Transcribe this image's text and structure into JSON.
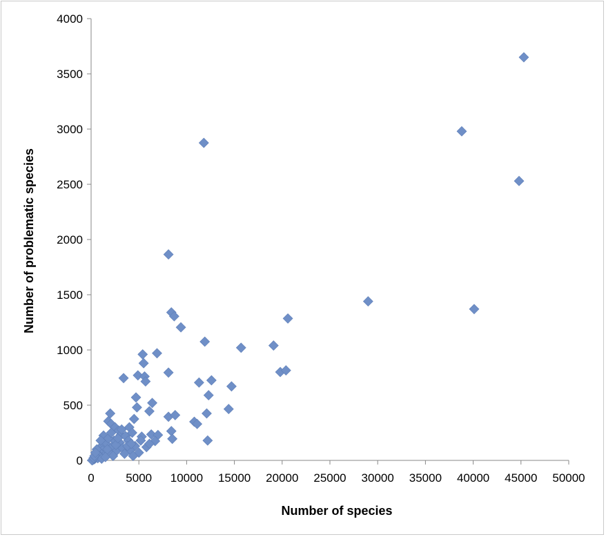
{
  "chart_data": {
    "type": "scatter",
    "title": "",
    "xlabel": "Number of species",
    "ylabel": "Number of problematic species",
    "xlim": [
      0,
      50000
    ],
    "ylim": [
      0,
      4000
    ],
    "x_ticks": [
      "0",
      "5000",
      "10000",
      "15000",
      "20000",
      "25000",
      "30000",
      "35000",
      "40000",
      "45000",
      "50000"
    ],
    "y_ticks": [
      "0",
      "500",
      "1000",
      "1500",
      "2000",
      "2500",
      "3000",
      "3500",
      "4000"
    ],
    "grid": false,
    "legend": "none",
    "marker": "diamond",
    "marker_color": "#6f8fc7",
    "series": [
      {
        "points": [
          [
            45300,
            3650
          ],
          [
            38800,
            2980
          ],
          [
            44800,
            2530
          ],
          [
            11800,
            2875
          ],
          [
            8100,
            1865
          ],
          [
            29000,
            1440
          ],
          [
            40100,
            1370
          ],
          [
            8400,
            1340
          ],
          [
            8700,
            1305
          ],
          [
            9400,
            1205
          ],
          [
            20600,
            1285
          ],
          [
            11900,
            1075
          ],
          [
            15700,
            1020
          ],
          [
            19100,
            1040
          ],
          [
            19800,
            800
          ],
          [
            20400,
            815
          ],
          [
            5400,
            960
          ],
          [
            6900,
            970
          ],
          [
            5500,
            880
          ],
          [
            8100,
            795
          ],
          [
            3400,
            745
          ],
          [
            4900,
            770
          ],
          [
            5600,
            760
          ],
          [
            5700,
            715
          ],
          [
            11300,
            705
          ],
          [
            12600,
            725
          ],
          [
            14700,
            670
          ],
          [
            12300,
            590
          ],
          [
            14400,
            465
          ],
          [
            12100,
            425
          ],
          [
            4700,
            570
          ],
          [
            6400,
            520
          ],
          [
            4800,
            480
          ],
          [
            6100,
            445
          ],
          [
            8100,
            395
          ],
          [
            8800,
            410
          ],
          [
            10800,
            350
          ],
          [
            11100,
            330
          ],
          [
            2000,
            425
          ],
          [
            1800,
            355
          ],
          [
            2100,
            330
          ],
          [
            4500,
            375
          ],
          [
            4000,
            300
          ],
          [
            8400,
            265
          ],
          [
            12200,
            180
          ],
          [
            8500,
            195
          ],
          [
            6300,
            235
          ],
          [
            7000,
            230
          ],
          [
            5300,
            215
          ],
          [
            6700,
            175
          ],
          [
            1300,
            225
          ],
          [
            2500,
            300
          ],
          [
            2900,
            270
          ],
          [
            3100,
            230
          ],
          [
            3600,
            220
          ],
          [
            4300,
            250
          ],
          [
            2400,
            180
          ],
          [
            3000,
            160
          ],
          [
            3900,
            180
          ],
          [
            4600,
            130
          ],
          [
            5800,
            120
          ],
          [
            6100,
            150
          ],
          [
            1600,
            150
          ],
          [
            2200,
            120
          ],
          [
            2700,
            90
          ],
          [
            3300,
            110
          ],
          [
            4100,
            90
          ],
          [
            5000,
            70
          ],
          [
            1000,
            120
          ],
          [
            1200,
            90
          ],
          [
            1400,
            60
          ],
          [
            1900,
            70
          ],
          [
            2300,
            40
          ],
          [
            800,
            80
          ],
          [
            900,
            40
          ],
          [
            600,
            60
          ],
          [
            500,
            30
          ],
          [
            400,
            15
          ],
          [
            300,
            10
          ],
          [
            200,
            5
          ],
          [
            700,
            20
          ],
          [
            1100,
            15
          ],
          [
            1500,
            30
          ],
          [
            1700,
            100
          ],
          [
            2600,
            140
          ],
          [
            3500,
            60
          ],
          [
            4400,
            40
          ],
          [
            3800,
            130
          ],
          [
            2800,
            200
          ],
          [
            1800,
            200
          ],
          [
            2100,
            250
          ],
          [
            3200,
            280
          ],
          [
            4200,
            150
          ],
          [
            5200,
            180
          ],
          [
            600,
            100
          ],
          [
            1000,
            180
          ],
          [
            100,
            0
          ],
          [
            250,
            20
          ],
          [
            350,
            40
          ],
          [
            450,
            70
          ]
        ]
      }
    ]
  }
}
